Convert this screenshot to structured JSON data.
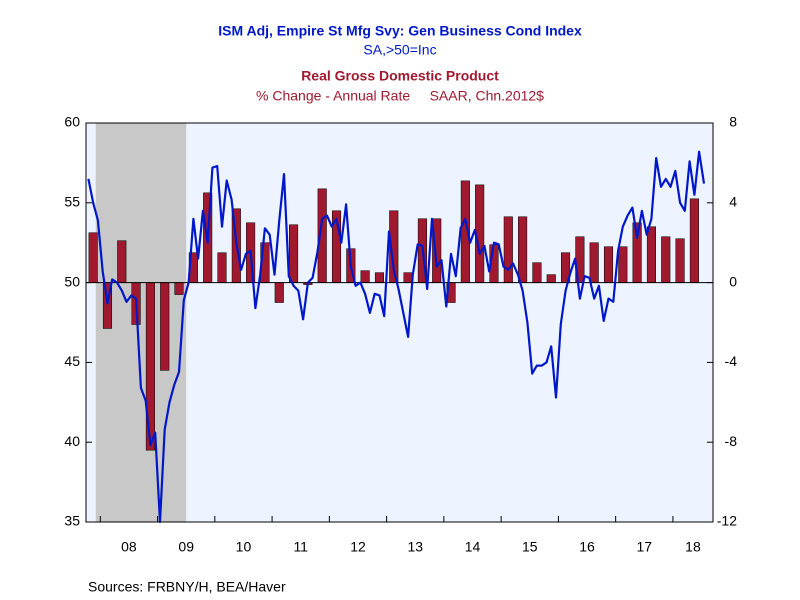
{
  "chart_data": {
    "type": "bar-line",
    "title": "ISM Adj, Empire St Mfg Svy: Gen Business Cond Index",
    "subtitle": "SA,>50=Inc",
    "title2": "Real Gross Domestic Product",
    "subtitle2": "% Change - Annual Rate     SAAR, Chn.2012$",
    "source": "Sources:  FRBNY/H, BEA/Haver",
    "xlim": [
      2007.75,
      2018.7
    ],
    "xticks": [
      {
        "value": 2008,
        "label": "08"
      },
      {
        "value": 2009,
        "label": "09"
      },
      {
        "value": 2010,
        "label": "10"
      },
      {
        "value": 2011,
        "label": "11"
      },
      {
        "value": 2012,
        "label": "12"
      },
      {
        "value": 2013,
        "label": "13"
      },
      {
        "value": 2014,
        "label": "14"
      },
      {
        "value": 2015,
        "label": "15"
      },
      {
        "value": 2016,
        "label": "16"
      },
      {
        "value": 2017,
        "label": "17"
      },
      {
        "value": 2018,
        "label": "18"
      }
    ],
    "ylim": [
      35,
      60
    ],
    "yticks": [
      35,
      40,
      45,
      50,
      55,
      60
    ],
    "y2lim": [
      -12,
      8
    ],
    "y2ticks": [
      -12,
      -8,
      -4,
      0,
      4,
      8
    ],
    "recessions": [
      [
        2007.92,
        2009.5
      ]
    ],
    "series": [
      {
        "name": "Real Gross Domestic Product",
        "type": "bar",
        "axis": "y2",
        "color": "#a0192e",
        "x": [
          2007.875,
          2008.125,
          2008.375,
          2008.625,
          2008.875,
          2009.125,
          2009.375,
          2009.625,
          2009.875,
          2010.125,
          2010.375,
          2010.625,
          2010.875,
          2011.125,
          2011.375,
          2011.625,
          2011.875,
          2012.125,
          2012.375,
          2012.625,
          2012.875,
          2013.125,
          2013.375,
          2013.625,
          2013.875,
          2014.125,
          2014.375,
          2014.625,
          2014.875,
          2015.125,
          2015.375,
          2015.625,
          2015.875,
          2016.125,
          2016.375,
          2016.625,
          2016.875,
          2017.125,
          2017.375,
          2017.625,
          2017.875,
          2018.125,
          2018.375
        ],
        "values": [
          2.5,
          -2.3,
          2.1,
          -2.1,
          -8.4,
          -4.4,
          -0.6,
          1.5,
          4.5,
          1.5,
          3.7,
          3.0,
          2.0,
          -1.0,
          2.9,
          -0.1,
          4.7,
          3.6,
          1.7,
          0.6,
          0.5,
          3.6,
          0.5,
          3.2,
          3.2,
          -1.0,
          5.1,
          4.9,
          1.9,
          3.3,
          3.3,
          1.0,
          0.4,
          1.5,
          2.3,
          2.0,
          1.8,
          1.8,
          3.0,
          2.8,
          2.3,
          2.2,
          4.2
        ]
      },
      {
        "name": "ISM Adj, Empire St Mfg Svy: Gen Business Cond Index",
        "type": "line",
        "color": "#0018c8",
        "x": [
          2007.792,
          2007.875,
          2007.958,
          2008.042,
          2008.125,
          2008.208,
          2008.292,
          2008.375,
          2008.458,
          2008.542,
          2008.625,
          2008.708,
          2008.792,
          2008.875,
          2008.958,
          2009.042,
          2009.125,
          2009.208,
          2009.292,
          2009.375,
          2009.458,
          2009.542,
          2009.625,
          2009.708,
          2009.792,
          2009.875,
          2009.958,
          2010.042,
          2010.125,
          2010.208,
          2010.292,
          2010.375,
          2010.458,
          2010.542,
          2010.625,
          2010.708,
          2010.792,
          2010.875,
          2010.958,
          2011.042,
          2011.125,
          2011.208,
          2011.292,
          2011.375,
          2011.458,
          2011.542,
          2011.625,
          2011.708,
          2011.792,
          2011.875,
          2011.958,
          2012.042,
          2012.125,
          2012.208,
          2012.292,
          2012.375,
          2012.458,
          2012.542,
          2012.625,
          2012.708,
          2012.792,
          2012.875,
          2012.958,
          2013.042,
          2013.125,
          2013.208,
          2013.292,
          2013.375,
          2013.458,
          2013.542,
          2013.625,
          2013.708,
          2013.792,
          2013.875,
          2013.958,
          2014.042,
          2014.125,
          2014.208,
          2014.292,
          2014.375,
          2014.458,
          2014.542,
          2014.625,
          2014.708,
          2014.792,
          2014.875,
          2014.958,
          2015.042,
          2015.125,
          2015.208,
          2015.292,
          2015.375,
          2015.458,
          2015.542,
          2015.625,
          2015.708,
          2015.792,
          2015.875,
          2015.958,
          2016.042,
          2016.125,
          2016.208,
          2016.292,
          2016.375,
          2016.458,
          2016.542,
          2016.625,
          2016.708,
          2016.792,
          2016.875,
          2016.958,
          2017.042,
          2017.125,
          2017.208,
          2017.292,
          2017.375,
          2017.458,
          2017.542,
          2017.625,
          2017.708,
          2017.792,
          2017.875,
          2017.958,
          2018.042,
          2018.125,
          2018.208,
          2018.292,
          2018.375,
          2018.458,
          2018.542
        ],
        "values": [
          56.5,
          55.0,
          53.9,
          50.7,
          48.7,
          50.2,
          50.0,
          49.5,
          48.8,
          49.2,
          49.0,
          43.4,
          42.6,
          39.8,
          40.6,
          35.0,
          40.8,
          42.5,
          43.6,
          44.4,
          48.9,
          50.0,
          54.0,
          51.5,
          54.5,
          52.5,
          57.2,
          57.3,
          53.5,
          56.4,
          55.2,
          52.5,
          50.8,
          51.8,
          52.0,
          48.4,
          50.5,
          53.4,
          53.0,
          50.5,
          53.9,
          56.8,
          50.4,
          49.8,
          49.5,
          47.7,
          50.0,
          50.3,
          51.9,
          54.0,
          54.2,
          53.5,
          54.0,
          52.5,
          54.9,
          51.0,
          49.8,
          50.0,
          49.3,
          48.1,
          49.3,
          49.2,
          47.9,
          53.2,
          50.8,
          49.6,
          48.1,
          46.6,
          50.5,
          52.4,
          52.3,
          49.6,
          54.0,
          51.0,
          51.4,
          48.5,
          51.8,
          50.4,
          53.4,
          54.0,
          52.5,
          53.3,
          51.8,
          52.3,
          50.7,
          52.5,
          52.4,
          51.0,
          50.8,
          51.2,
          50.5,
          49.5,
          47.5,
          44.3,
          44.8,
          44.8,
          45.0,
          46.0,
          42.8,
          47.4,
          49.5,
          50.6,
          51.5,
          49.0,
          50.4,
          50.3,
          49.0,
          49.8,
          47.6,
          49.0,
          48.8,
          52.0,
          53.5,
          54.2,
          54.7,
          52.8,
          54.5,
          53.0,
          54.0,
          57.8,
          56.0,
          56.5,
          56.0,
          57.0,
          55.0,
          54.5,
          57.6,
          55.5,
          58.2,
          56.2
        ]
      }
    ]
  }
}
